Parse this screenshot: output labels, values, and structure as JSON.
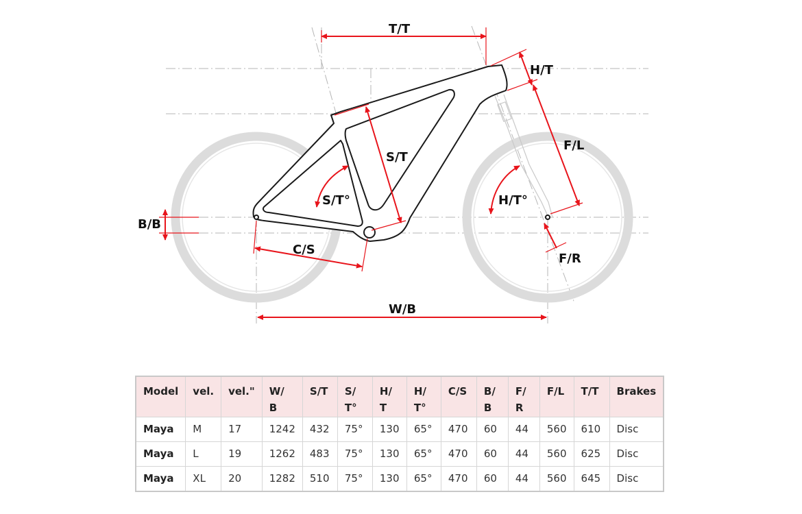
{
  "diagram": {
    "labels": {
      "tt": "T/T",
      "ht": "H/T",
      "fl": "F/L",
      "st": "S/T",
      "sta": "S/T°",
      "hta": "H/T°",
      "bb": "B/B",
      "cs": "C/S",
      "fr": "F/R",
      "wb": "W/B"
    },
    "colors": {
      "dimension": "#e8141b",
      "wheel": "#dcdcdc",
      "frame": "#1a1a1a",
      "guide": "#b5b5b5"
    }
  },
  "table": {
    "headers": [
      [
        "Model"
      ],
      [
        "vel."
      ],
      [
        "vel.\""
      ],
      [
        "W/",
        "B"
      ],
      [
        "S/T"
      ],
      [
        "S/",
        "T°"
      ],
      [
        "H/",
        "T"
      ],
      [
        "H/",
        "T°"
      ],
      [
        "C/S"
      ],
      [
        "B/",
        "B"
      ],
      [
        "F/",
        "R"
      ],
      [
        "F/L"
      ],
      [
        "T/T"
      ],
      [
        "Brakes"
      ]
    ],
    "rows": [
      [
        "Maya",
        "M",
        "17",
        "1242",
        "432",
        "75°",
        "130",
        "65°",
        "470",
        "60",
        "44",
        "560",
        "610",
        "Disc"
      ],
      [
        "Maya",
        "L",
        "19",
        "1262",
        "483",
        "75°",
        "130",
        "65°",
        "470",
        "60",
        "44",
        "560",
        "625",
        "Disc"
      ],
      [
        "Maya",
        "XL",
        "20",
        "1282",
        "510",
        "75°",
        "130",
        "65°",
        "470",
        "60",
        "44",
        "560",
        "645",
        "Disc"
      ]
    ],
    "header_bg": "#f9e4e5"
  }
}
